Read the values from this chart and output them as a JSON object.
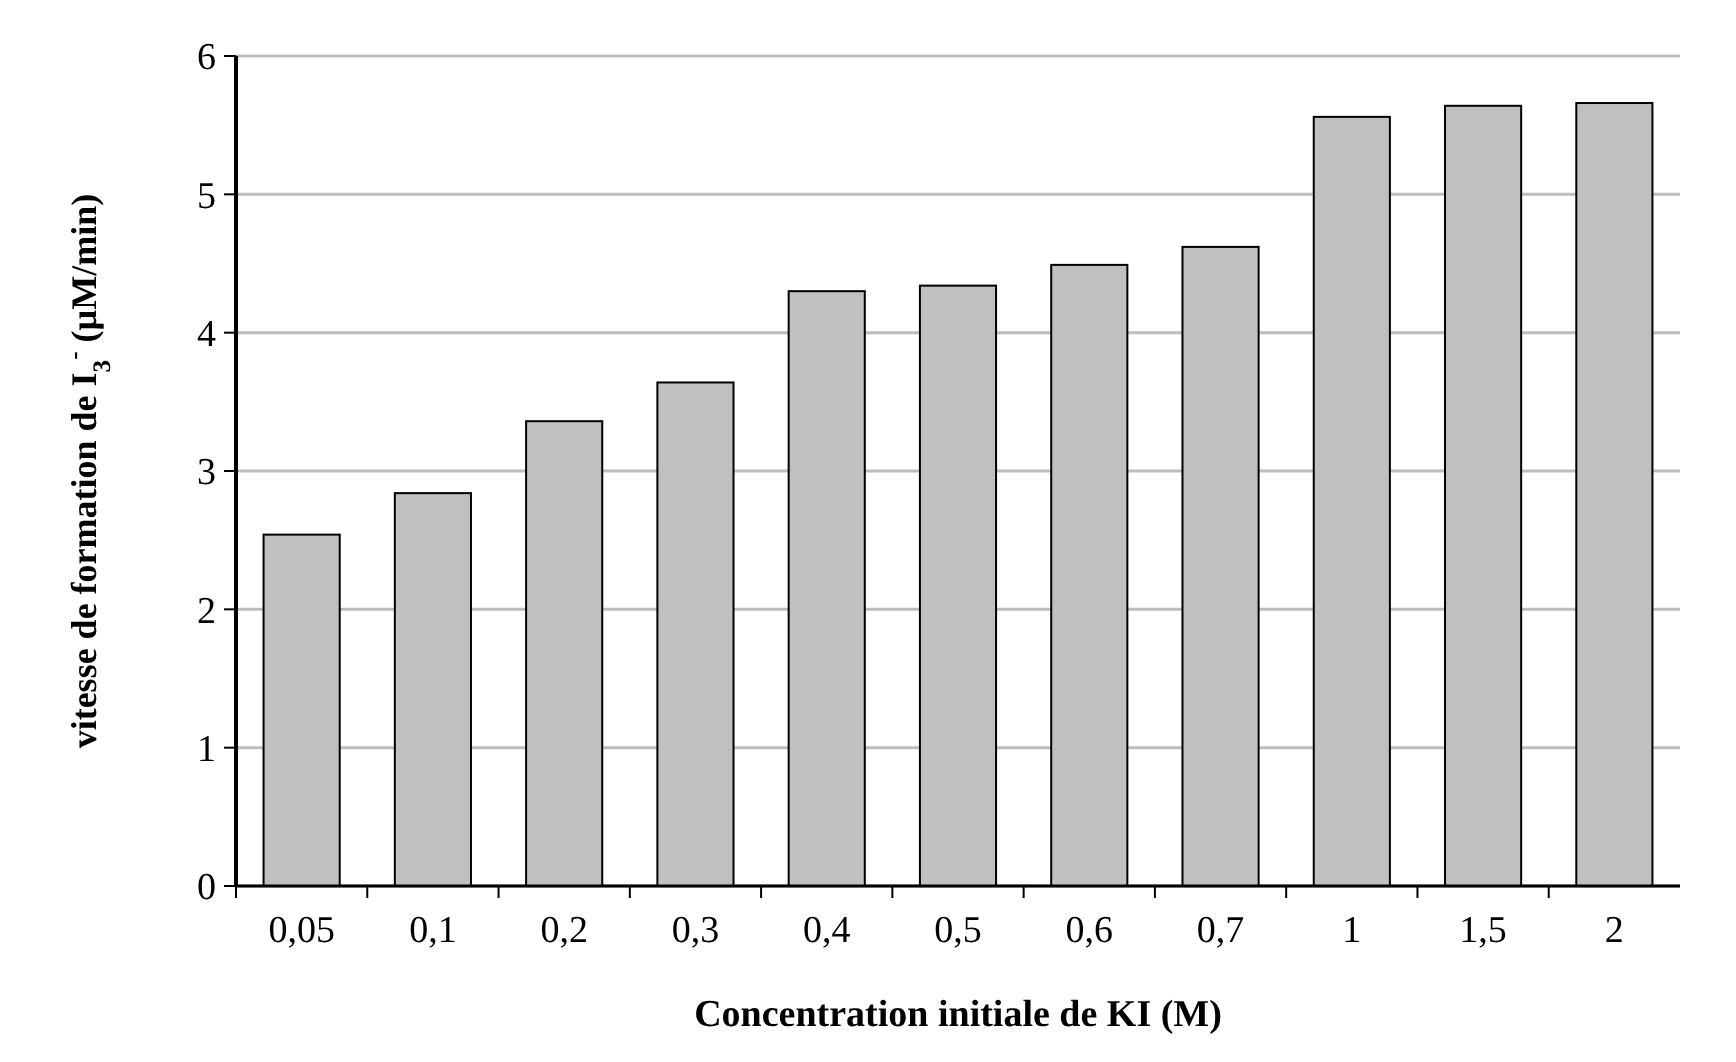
{
  "chart_data": {
    "type": "bar",
    "xlabel": "Concentration initiale de KI (M)",
    "ylabel": "vitesse de formation de I$_{3}$$^{-}$ (µM/min)",
    "categories": [
      "0,05",
      "0,1",
      "0,2",
      "0,3",
      "0,4",
      "0,5",
      "0,6",
      "0,7",
      "1",
      "1,5",
      "2"
    ],
    "values": [
      2.54,
      2.84,
      3.36,
      3.64,
      4.3,
      4.34,
      4.49,
      4.62,
      5.56,
      5.64,
      5.66
    ],
    "color": "#c0c0c0",
    "ylim": [
      0,
      6
    ],
    "yticks": [
      0,
      1,
      2,
      3,
      4,
      5,
      6
    ],
    "grid": "y"
  }
}
